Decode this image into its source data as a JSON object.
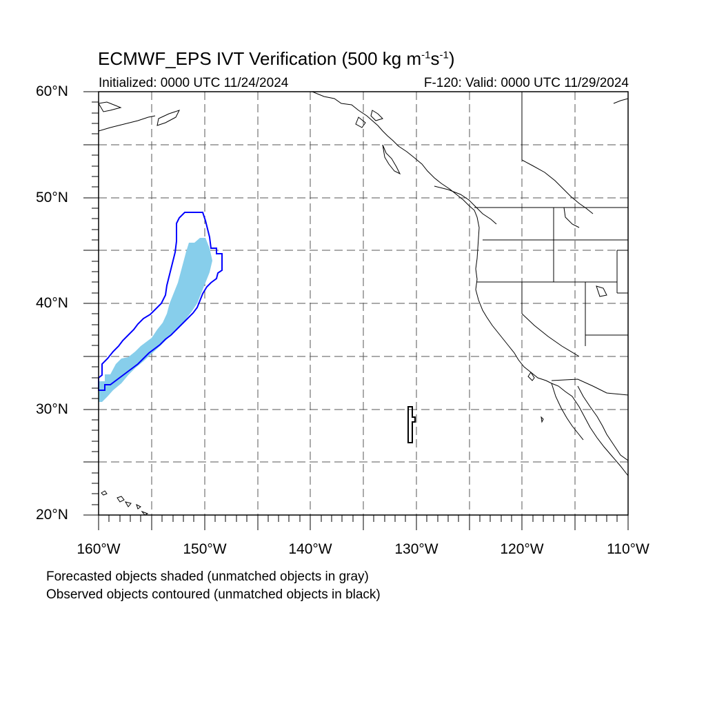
{
  "title": {
    "main": "ECMWF_EPS IVT Verification (500 kg m",
    "sup1": "-1",
    "mid": "s",
    "sup2": "-1",
    "end": ")"
  },
  "subtitle": {
    "initialized": "Initialized: 0000 UTC 11/24/2024",
    "valid": "F-120: Valid: 0000 UTC 11/29/2024"
  },
  "axes": {
    "lat_labels": [
      "60°N",
      "50°N",
      "40°N",
      "30°N",
      "20°N"
    ],
    "lon_labels": [
      "160°W",
      "150°W",
      "140°W",
      "130°W",
      "120°W",
      "110°W"
    ],
    "lat_range": [
      20,
      60
    ],
    "lon_range": [
      -160,
      -110
    ],
    "grid": "dashed every 5 degrees"
  },
  "notes": {
    "forecast": "Forecasted objects shaded (unmatched objects in gray)",
    "observed": "Observed objects contoured (unmatched objects in black)"
  },
  "colors": {
    "forecast_fill": "#87ceeb",
    "matched_contour": "#0000ff",
    "unmatched_contour": "#000000",
    "grid": "#555555"
  }
}
